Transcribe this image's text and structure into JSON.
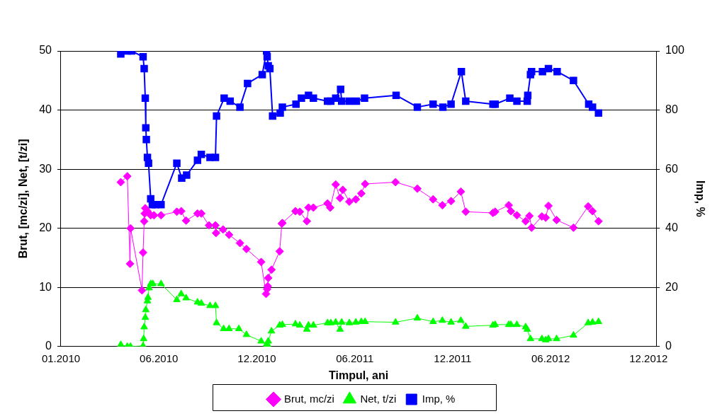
{
  "chart_data": {
    "type": "line",
    "xlabel": "Timpul, ani",
    "ylabel": "Brut, [mc/zi], Net, [t/zi]",
    "y2label": "Imp, %",
    "xlim": [
      "2010-01-01",
      "2012-12-30"
    ],
    "xticks": [
      {
        "value": "2010-01-01",
        "label": "01.2010"
      },
      {
        "value": "2010-06-30",
        "label": "06.2010"
      },
      {
        "value": "2010-12-27",
        "label": "12.2010"
      },
      {
        "value": "2011-06-25",
        "label": "06.2011"
      },
      {
        "value": "2011-12-22",
        "label": "12.2011"
      },
      {
        "value": "2012-06-19",
        "label": "06.2012"
      },
      {
        "value": "2012-12-16",
        "label": "12.2012"
      }
    ],
    "ylim": [
      0,
      50
    ],
    "yticks": [
      0,
      10,
      20,
      30,
      40,
      50
    ],
    "y2lim": [
      0,
      100
    ],
    "y2ticks": [
      0,
      20,
      40,
      60,
      80,
      100
    ],
    "grid": "y",
    "legend": "bottom",
    "line_style": "solid",
    "series": [
      {
        "name": "Brut, mc/zi",
        "color": "#ff00ff",
        "marker": "diamond",
        "x": [
          "2010-04-21",
          "2010-05-03",
          "2010-05-08",
          "2010-05-09",
          "2010-05-30",
          "2010-06-01",
          "2010-06-03",
          "2010-06-04",
          "2010-06-05",
          "2010-06-09",
          "2010-06-15",
          "2010-06-21",
          "2010-07-04",
          "2010-08-02",
          "2010-08-10",
          "2010-08-19",
          "2010-09-09",
          "2010-09-16",
          "2010-09-30",
          "2010-10-12",
          "2010-10-13",
          "2010-10-26",
          "2010-11-06",
          "2010-11-26",
          "2010-12-08",
          "2011-01-04",
          "2011-01-13",
          "2011-01-15",
          "2011-01-16",
          "2011-01-17",
          "2011-01-23",
          "2011-02-07",
          "2011-02-11",
          "2011-02-12",
          "2011-03-08",
          "2011-03-16",
          "2011-03-29",
          "2011-04-01",
          "2011-04-10",
          "2011-05-06",
          "2011-05-11",
          "2011-05-21",
          "2011-05-29",
          "2011-06-03",
          "2011-06-15",
          "2011-06-27",
          "2011-07-07",
          "2011-07-14",
          "2011-09-08",
          "2011-10-18",
          "2011-11-16",
          "2011-12-03",
          "2011-12-19",
          "2012-01-06",
          "2012-01-15",
          "2012-03-05",
          "2012-03-09",
          "2012-04-03",
          "2012-04-07",
          "2012-04-18",
          "2012-05-04",
          "2012-05-11",
          "2012-05-15",
          "2012-06-03",
          "2012-06-10",
          "2012-06-15",
          "2012-06-30",
          "2012-07-31",
          "2012-08-27",
          "2012-09-04",
          "2012-09-15"
        ],
        "values": [
          27.8,
          28.8,
          14,
          20,
          9.5,
          15.9,
          21.2,
          22.5,
          23.4,
          22.9,
          22.2,
          22.2,
          22.2,
          22.8,
          22.9,
          21.3,
          22.5,
          22.5,
          20.5,
          20.5,
          19.2,
          19.8,
          18.9,
          17.5,
          16.5,
          14.3,
          8.9,
          9.7,
          10.2,
          11.6,
          13,
          16.1,
          20.8,
          20.9,
          22.9,
          22.8,
          21.2,
          23.5,
          23.5,
          24.2,
          23.5,
          27.4,
          25.1,
          26.5,
          24.5,
          24.9,
          25.9,
          27.5,
          27.8,
          26.7,
          24.9,
          23.9,
          24.6,
          26.2,
          22.8,
          22.6,
          22.8,
          23.9,
          22.9,
          22.2,
          21.2,
          22.1,
          20.1,
          22,
          21.8,
          23.8,
          21.4,
          20.1,
          23.7,
          22.9,
          21.2
        ]
      },
      {
        "name": "Net, t/zi",
        "color": "#00ff00",
        "marker": "triangle",
        "x": [
          "2010-04-21",
          "2010-05-03",
          "2010-05-09",
          "2010-06-01",
          "2010-06-02",
          "2010-06-03",
          "2010-06-05",
          "2010-06-06",
          "2010-06-09",
          "2010-06-10",
          "2010-06-12",
          "2010-06-15",
          "2010-06-19",
          "2010-07-04",
          "2010-08-02",
          "2010-08-10",
          "2010-08-19",
          "2010-09-09",
          "2010-09-16",
          "2010-10-02",
          "2010-10-12",
          "2010-10-14",
          "2010-10-27",
          "2010-11-06",
          "2010-11-24",
          "2010-12-08",
          "2011-01-04",
          "2011-01-14",
          "2011-01-16",
          "2011-01-17",
          "2011-01-23",
          "2011-02-07",
          "2011-02-12",
          "2011-03-08",
          "2011-03-16",
          "2011-03-29",
          "2011-04-01",
          "2011-04-10",
          "2011-05-06",
          "2011-05-12",
          "2011-05-21",
          "2011-05-29",
          "2011-06-01",
          "2011-06-15",
          "2011-06-27",
          "2011-07-07",
          "2011-07-14",
          "2011-09-08",
          "2011-10-18",
          "2011-11-16",
          "2011-12-03",
          "2011-12-19",
          "2012-01-06",
          "2012-01-15",
          "2012-03-05",
          "2012-03-09",
          "2012-04-03",
          "2012-04-07",
          "2012-04-18",
          "2012-05-04",
          "2012-05-07",
          "2012-05-13",
          "2012-06-03",
          "2012-06-10",
          "2012-06-15",
          "2012-06-30",
          "2012-07-31",
          "2012-08-27",
          "2012-09-04",
          "2012-09-15"
        ],
        "values": [
          0.3,
          0,
          0,
          0.1,
          1.3,
          3.3,
          4.9,
          6.2,
          7.7,
          8.3,
          9.9,
          10.6,
          10.6,
          10.6,
          7.9,
          8.9,
          8.2,
          7.5,
          7.3,
          6.9,
          6.9,
          4,
          3,
          3,
          3,
          2,
          0.9,
          0.4,
          0.3,
          0.9,
          2.6,
          3.6,
          3.7,
          3.8,
          3.6,
          2.9,
          3.6,
          3.6,
          4,
          4,
          4.1,
          2.9,
          4.1,
          4,
          4.1,
          4.2,
          4.2,
          4.1,
          4.8,
          4.2,
          4.4,
          4.1,
          4.4,
          3.4,
          3.6,
          3.7,
          3.7,
          3.7,
          3.7,
          3.3,
          2.9,
          1.3,
          1.3,
          1.1,
          1.3,
          1.3,
          1.9,
          4,
          4.1,
          4.2
        ]
      },
      {
        "name": "Imp, %",
        "color": "#0000ff",
        "marker": "square",
        "axis": "y2",
        "x": [
          "2010-04-21",
          "2010-05-03",
          "2010-05-11",
          "2010-06-01",
          "2010-06-03",
          "2010-06-05",
          "2010-06-06",
          "2010-06-07",
          "2010-06-09",
          "2010-06-11",
          "2010-06-15",
          "2010-06-18",
          "2010-06-24",
          "2010-07-04",
          "2010-08-02",
          "2010-08-11",
          "2010-08-20",
          "2010-09-09",
          "2010-09-16",
          "2010-10-02",
          "2010-10-12",
          "2010-10-14",
          "2010-10-28",
          "2010-11-08",
          "2010-11-26",
          "2010-12-10",
          "2011-01-06",
          "2011-01-14",
          "2011-01-15",
          "2011-01-17",
          "2011-01-20",
          "2011-01-25",
          "2011-02-08",
          "2011-02-12",
          "2011-03-09",
          "2011-03-19",
          "2011-04-01",
          "2011-04-10",
          "2011-05-06",
          "2011-05-12",
          "2011-05-21",
          "2011-05-30",
          "2011-06-01",
          "2011-06-15",
          "2011-06-28",
          "2011-07-13",
          "2011-09-09",
          "2011-10-18",
          "2011-11-16",
          "2011-12-04",
          "2011-12-19",
          "2012-01-07",
          "2012-01-15",
          "2012-03-05",
          "2012-03-09",
          "2012-04-05",
          "2012-04-18",
          "2012-05-07",
          "2012-05-08",
          "2012-05-13",
          "2012-05-15",
          "2012-06-04",
          "2012-06-15",
          "2012-07-01",
          "2012-07-31",
          "2012-08-28",
          "2012-09-04",
          "2012-09-15"
        ],
        "values": [
          99,
          100,
          100,
          98,
          94,
          84,
          74,
          70,
          64,
          62,
          50,
          48,
          48,
          48,
          62,
          57,
          58,
          63,
          65,
          64,
          64,
          78,
          84,
          83,
          81,
          89,
          92,
          100,
          98,
          95,
          94,
          78,
          79,
          81,
          82,
          84,
          85,
          84,
          83,
          83,
          84,
          87,
          83,
          83,
          83,
          84,
          85,
          81,
          82,
          81,
          82,
          93,
          83,
          82,
          82,
          84,
          83,
          83,
          85,
          92,
          93,
          93,
          94,
          93,
          90,
          82,
          81,
          79
        ]
      }
    ]
  }
}
